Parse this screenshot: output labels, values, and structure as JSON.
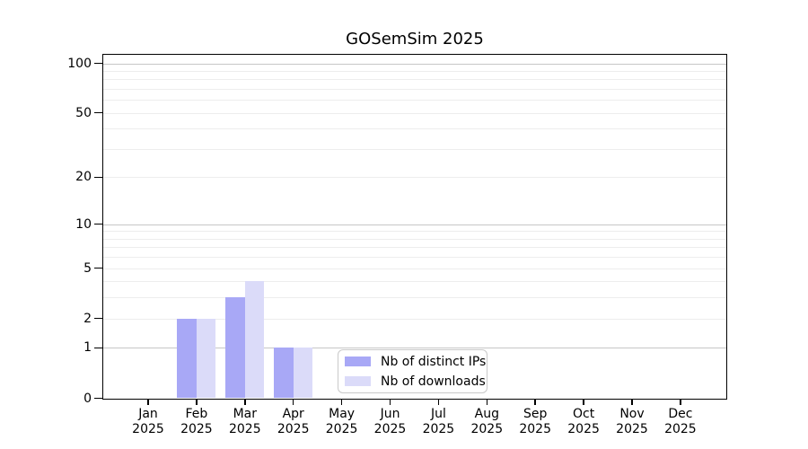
{
  "title": "GOSemSim 2025",
  "colors": {
    "bar_ips": "#a8a8f6",
    "bar_downloads": "#dbdbf9",
    "grid_major": "#c6c6c6",
    "grid_minor": "#ededed",
    "axis": "#000000",
    "legend_border": "#c9c9c9",
    "background": "#ffffff",
    "text": "#000000"
  },
  "legend": {
    "items": [
      {
        "label": "Nb of distinct IPs",
        "color_key": "bar_ips"
      },
      {
        "label": "Nb of downloads",
        "color_key": "bar_downloads"
      }
    ]
  },
  "y_axis": {
    "tick_labels": [
      "100",
      "50",
      "20",
      "10",
      "5",
      "2",
      "1",
      "0"
    ]
  },
  "x_axis": {
    "months": [
      "Jan",
      "Feb",
      "Mar",
      "Apr",
      "May",
      "Jun",
      "Jul",
      "Aug",
      "Sep",
      "Oct",
      "Nov",
      "Dec"
    ],
    "year": "2025"
  },
  "chart_data": {
    "type": "bar",
    "title": "GOSemSim 2025",
    "categories": [
      "Jan 2025",
      "Feb 2025",
      "Mar 2025",
      "Apr 2025",
      "May 2025",
      "Jun 2025",
      "Jul 2025",
      "Aug 2025",
      "Sep 2025",
      "Oct 2025",
      "Nov 2025",
      "Dec 2025"
    ],
    "series": [
      {
        "name": "Nb of distinct IPs",
        "values": [
          0,
          2,
          3,
          1,
          0,
          0,
          0,
          0,
          0,
          0,
          0,
          0
        ]
      },
      {
        "name": "Nb of downloads",
        "values": [
          0,
          2,
          4,
          1,
          0,
          0,
          0,
          0,
          0,
          0,
          0,
          0
        ]
      }
    ],
    "y_scale": "log1p",
    "y_ticks": [
      100,
      50,
      20,
      10,
      5,
      2,
      1,
      0
    ],
    "ylim": [
      0,
      113
    ],
    "grid": "on",
    "gridline_values": {
      "major": [
        1,
        10,
        100
      ],
      "minor": [
        2,
        3,
        4,
        5,
        6,
        7,
        8,
        9,
        20,
        30,
        40,
        50,
        60,
        70,
        80,
        90
      ]
    },
    "legend_position": "inside-bottom-center"
  }
}
